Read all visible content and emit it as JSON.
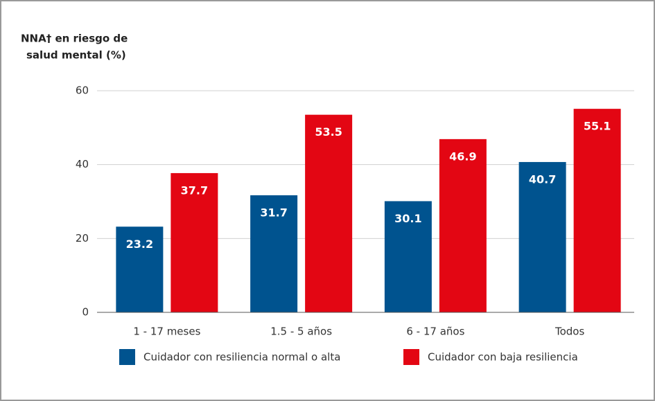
{
  "chart_data": {
    "type": "bar",
    "ylabel": [
      "NNA† en riesgo de",
      "salud mental (%)"
    ],
    "categories": [
      "1 - 17 meses",
      "1.5 - 5 años",
      "6 - 17 años",
      "Todos"
    ],
    "series": [
      {
        "name": "Cuidador con resiliencia normal o alta",
        "color": "#00538f",
        "values": [
          23.2,
          31.7,
          30.1,
          40.7
        ]
      },
      {
        "name": "Cuidador con baja resiliencia",
        "color": "#e30613",
        "values": [
          37.7,
          53.5,
          46.9,
          55.1
        ]
      }
    ],
    "ylim": [
      0,
      60
    ],
    "yticks": [
      0,
      20,
      40,
      60
    ],
    "grid": true,
    "legend": "bottom"
  }
}
